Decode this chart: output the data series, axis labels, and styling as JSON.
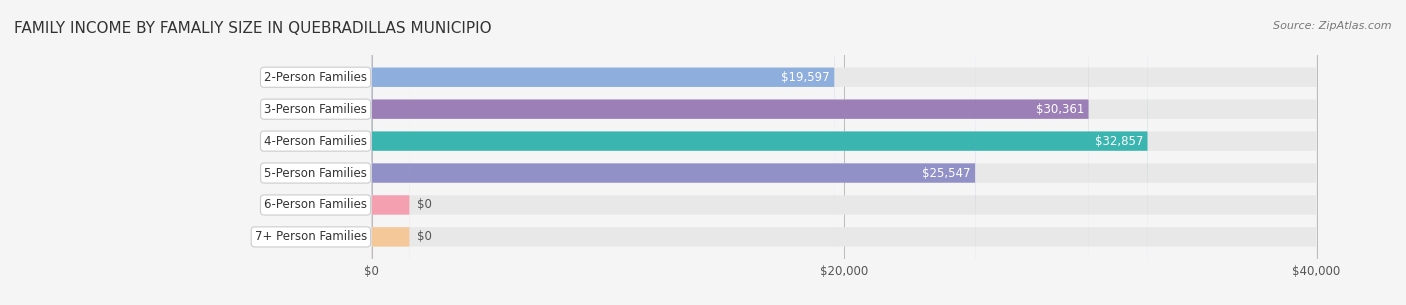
{
  "title": "FAMILY INCOME BY FAMALIY SIZE IN QUEBRADILLAS MUNICIPIO",
  "source": "Source: ZipAtlas.com",
  "categories": [
    "2-Person Families",
    "3-Person Families",
    "4-Person Families",
    "5-Person Families",
    "6-Person Families",
    "7+ Person Families"
  ],
  "values": [
    19597,
    30361,
    32857,
    25547,
    0,
    0
  ],
  "bar_colors": [
    "#8eaedd",
    "#9b7fb6",
    "#3ab5b0",
    "#9191c8",
    "#f4a0b0",
    "#f5c89a"
  ],
  "label_colors": [
    "#ffffff",
    "#ffffff",
    "#ffffff",
    "#ffffff",
    "#555555",
    "#555555"
  ],
  "bar_bg_color": "#e8e8e8",
  "xlim": [
    0,
    40000
  ],
  "xticks": [
    0,
    20000,
    40000
  ],
  "xtick_labels": [
    "$0",
    "$20,000",
    "$40,000"
  ],
  "title_fontsize": 11,
  "source_fontsize": 8,
  "label_fontsize": 8.5,
  "value_fontsize": 8.5,
  "bar_height": 0.6,
  "background_color": "#f5f5f5"
}
